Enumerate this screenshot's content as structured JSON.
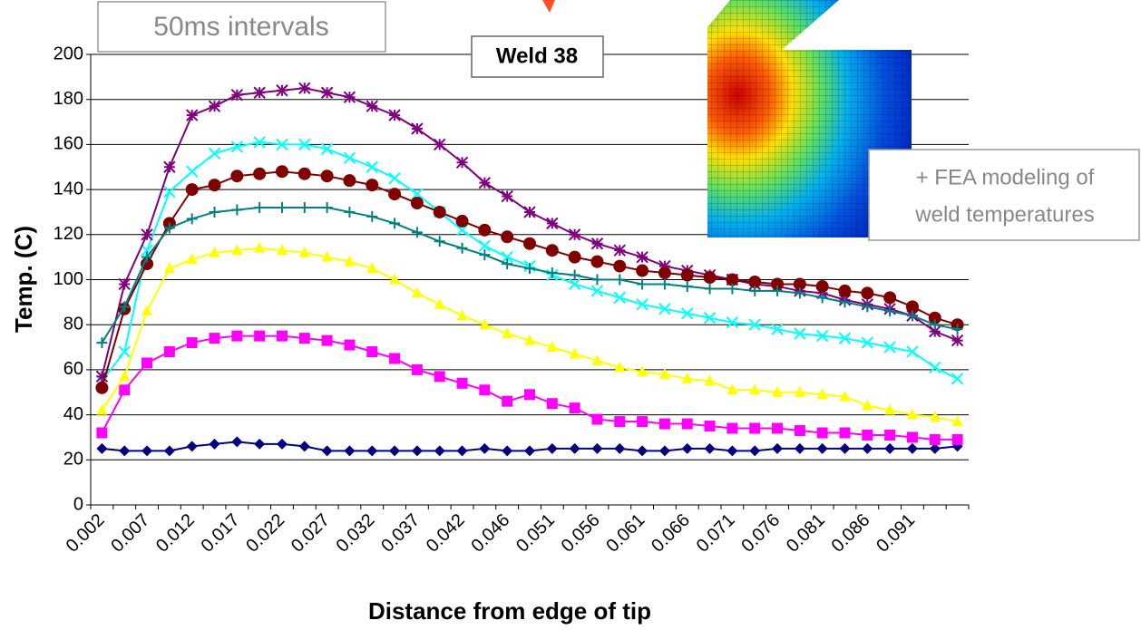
{
  "chart_data": {
    "type": "line",
    "title": "Weld 38",
    "subtitle": "50ms intervals",
    "annotations": [
      "+ FEA modeling of",
      "weld temperatures"
    ],
    "x_label": "Distance from edge of tip",
    "y_label": "Temp. (C)",
    "categories": [
      "0.002",
      null,
      "0.007",
      null,
      "0.012",
      null,
      "0.017",
      null,
      "0.022",
      null,
      "0.027",
      null,
      "0.032",
      null,
      "0.037",
      null,
      "0.042",
      null,
      "0.046",
      null,
      "0.051",
      null,
      "0.056",
      null,
      "0.061",
      null,
      "0.066",
      null,
      "0.071",
      null,
      "0.076",
      null,
      "0.081",
      null,
      "0.086",
      null,
      "0.091",
      null,
      null
    ],
    "ylim": [
      0,
      200
    ],
    "yticks": [
      0,
      20,
      40,
      60,
      80,
      100,
      120,
      140,
      160,
      180,
      200
    ],
    "grid": true,
    "series": [
      {
        "color": "#000080",
        "marker": "diamond",
        "values": [
          25,
          24,
          24,
          24,
          26,
          27,
          28,
          27,
          27,
          26,
          24,
          24,
          24,
          24,
          24,
          24,
          24,
          25,
          24,
          24,
          25,
          25,
          25,
          25,
          24,
          24,
          25,
          25,
          24,
          24,
          25,
          25,
          25,
          25,
          25,
          25,
          25,
          25,
          26
        ]
      },
      {
        "color": "#ff00ff",
        "marker": "square",
        "values": [
          32,
          51,
          63,
          68,
          72,
          74,
          75,
          75,
          75,
          74,
          73,
          71,
          68,
          65,
          60,
          57,
          54,
          51,
          46,
          49,
          45,
          43,
          38,
          37,
          37,
          36,
          36,
          35,
          34,
          34,
          34,
          33,
          32,
          32,
          31,
          31,
          30,
          29,
          29
        ]
      },
      {
        "color": "#ffff00",
        "marker": "triangle",
        "values": [
          42,
          57,
          86,
          105,
          109,
          112,
          113,
          114,
          113,
          112,
          110,
          108,
          105,
          100,
          94,
          89,
          84,
          80,
          76,
          73,
          70,
          67,
          64,
          61,
          59,
          58,
          56,
          55,
          51,
          51,
          50,
          50,
          49,
          48,
          44,
          42,
          40,
          39,
          37
        ]
      },
      {
        "color": "#00ffff",
        "marker": "x",
        "values": [
          55,
          68,
          113,
          139,
          148,
          156,
          159,
          161,
          160,
          160,
          158,
          154,
          150,
          145,
          138,
          130,
          122,
          115,
          110,
          106,
          102,
          98,
          95,
          92,
          89,
          87,
          85,
          83,
          81,
          80,
          78,
          76,
          75,
          74,
          72,
          70,
          68,
          61,
          56
        ]
      },
      {
        "color": "#800080",
        "marker": "star",
        "values": [
          57,
          98,
          120,
          150,
          173,
          177,
          182,
          183,
          184,
          185,
          183,
          181,
          177,
          173,
          167,
          160,
          152,
          143,
          137,
          130,
          125,
          120,
          116,
          113,
          110,
          106,
          104,
          102,
          100,
          98,
          97,
          95,
          94,
          91,
          89,
          87,
          84,
          77,
          73
        ]
      },
      {
        "color": "#800000",
        "marker": "circle",
        "values": [
          52,
          87,
          107,
          125,
          140,
          142,
          146,
          147,
          148,
          147,
          146,
          144,
          142,
          138,
          134,
          130,
          126,
          122,
          119,
          116,
          113,
          110,
          108,
          106,
          104,
          103,
          102,
          101,
          100,
          99,
          98,
          98,
          97,
          95,
          94,
          92,
          88,
          83,
          80
        ]
      },
      {
        "color": "#008080",
        "marker": "plus",
        "values": [
          72,
          88,
          110,
          123,
          127,
          130,
          131,
          132,
          132,
          132,
          132,
          130,
          128,
          125,
          121,
          117,
          114,
          111,
          107,
          105,
          103,
          102,
          100,
          100,
          98,
          98,
          97,
          96,
          96,
          95,
          95,
          94,
          92,
          90,
          88,
          86,
          84,
          80,
          78
        ]
      }
    ]
  }
}
